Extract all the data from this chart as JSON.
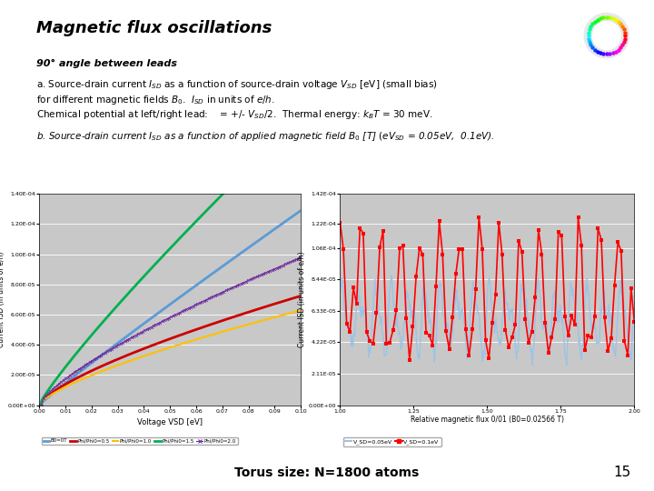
{
  "title": "Magnetic flux oscillations",
  "subtitle": "90° angle between leads",
  "bg_color": "#ffffff",
  "plot_bg": "#c8c8c8",
  "left_plot": {
    "ylabel": "Current ISD (In units of e/h)",
    "xlabel": "Voltage VSD [eV]",
    "xlim": [
      0.0,
      0.1
    ],
    "ylim": [
      0.0,
      0.00014
    ],
    "ytick_vals": [
      0.0,
      2e-05,
      4e-05,
      6e-05,
      8e-05,
      0.0001,
      0.00012,
      0.00014
    ],
    "ytick_lbls": [
      "0.00E+00",
      "2.00E-05",
      "4.00E-05",
      "6.00E-05",
      "8.00E-05",
      "1.00E-04",
      "1.20E-04",
      "1.40E-04"
    ],
    "xtick_vals": [
      0.0,
      0.01,
      0.02,
      0.03,
      0.04,
      0.05,
      0.06,
      0.07,
      0.08,
      0.09,
      0.1
    ],
    "xtick_lbls": [
      "0.00",
      "0.01",
      "0.02",
      "0.03",
      "0.04",
      "0.05",
      "0.06",
      "0.07",
      "0.08",
      "0.09",
      "0.10"
    ]
  },
  "right_plot": {
    "ylabel": "Current ISD (in units of e/h)",
    "xlabel": "Relative magnetic flux 0/01 (B0=0.02566 T)",
    "xlim": [
      1.0,
      2.0
    ],
    "ylim": [
      0.0,
      0.000142
    ],
    "ytick_vals": [
      0.0,
      2.11e-05,
      4.22e-05,
      6.33e-05,
      8.44e-05,
      0.0001055,
      0.0001222,
      0.000142
    ],
    "ytick_lbls": [
      "0.00E+00",
      "2.11E-05",
      "4.22E-05",
      "6.33E-05",
      "8.44E-05",
      "1.06E-04",
      "1.22E-04",
      "1.42E-04"
    ],
    "xtick_vals": [
      1.0,
      1.25,
      1.5,
      1.75,
      2.0
    ],
    "xtick_lbls": [
      "1.00",
      "1.25",
      "1.50",
      "1.75",
      "2.00"
    ]
  },
  "footer": "Torus size: N=1800 atoms",
  "page_num": "15",
  "left_legend": [
    "B0=0T",
    "Phi/Phi0=0.5",
    "Phi/Phi0=1.0",
    "Phi/Phi0=1.5",
    "Phi/Phi0=2.0"
  ],
  "left_colors": [
    "#5b9bd5",
    "#cc0000",
    "#ffc000",
    "#00b050",
    "#7030a0"
  ],
  "right_legend": [
    "V_SD=0.05eV",
    "V_SD=0.1eV"
  ],
  "right_colors": [
    "#9dc3e6",
    "#ff0000"
  ]
}
